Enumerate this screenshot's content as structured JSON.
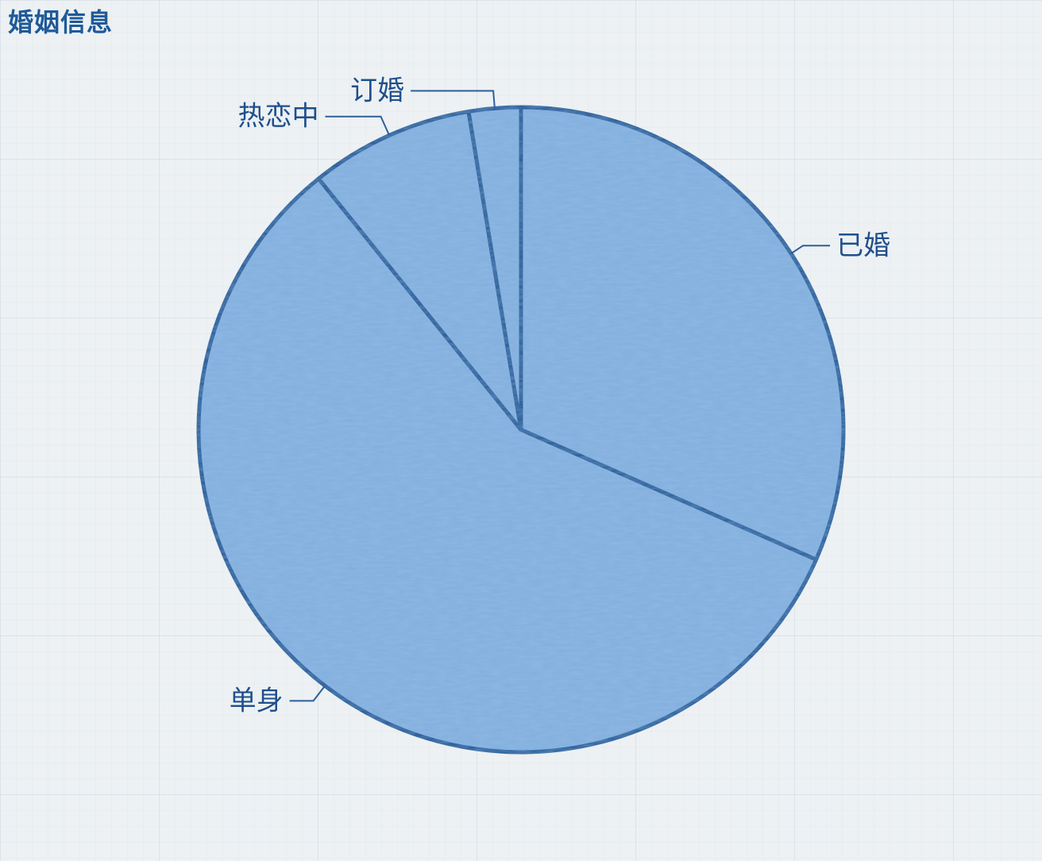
{
  "page": {
    "title": "婚姻信息"
  },
  "colors": {
    "title": "#1f5a99",
    "label": "#1f4f8c",
    "slice_fill": "#8db6e3",
    "slice_stroke": "#2d5f9a",
    "leader": "#2d5f9a"
  },
  "chart_data": {
    "type": "pie",
    "title": "婚姻信息",
    "labels": [
      "已婚",
      "单身",
      "热恋中",
      "订婚"
    ],
    "values": [
      31.6,
      57.6,
      8.2,
      2.6
    ],
    "start_angle_deg": 0,
    "direction": "clockwise",
    "legend": "none"
  }
}
